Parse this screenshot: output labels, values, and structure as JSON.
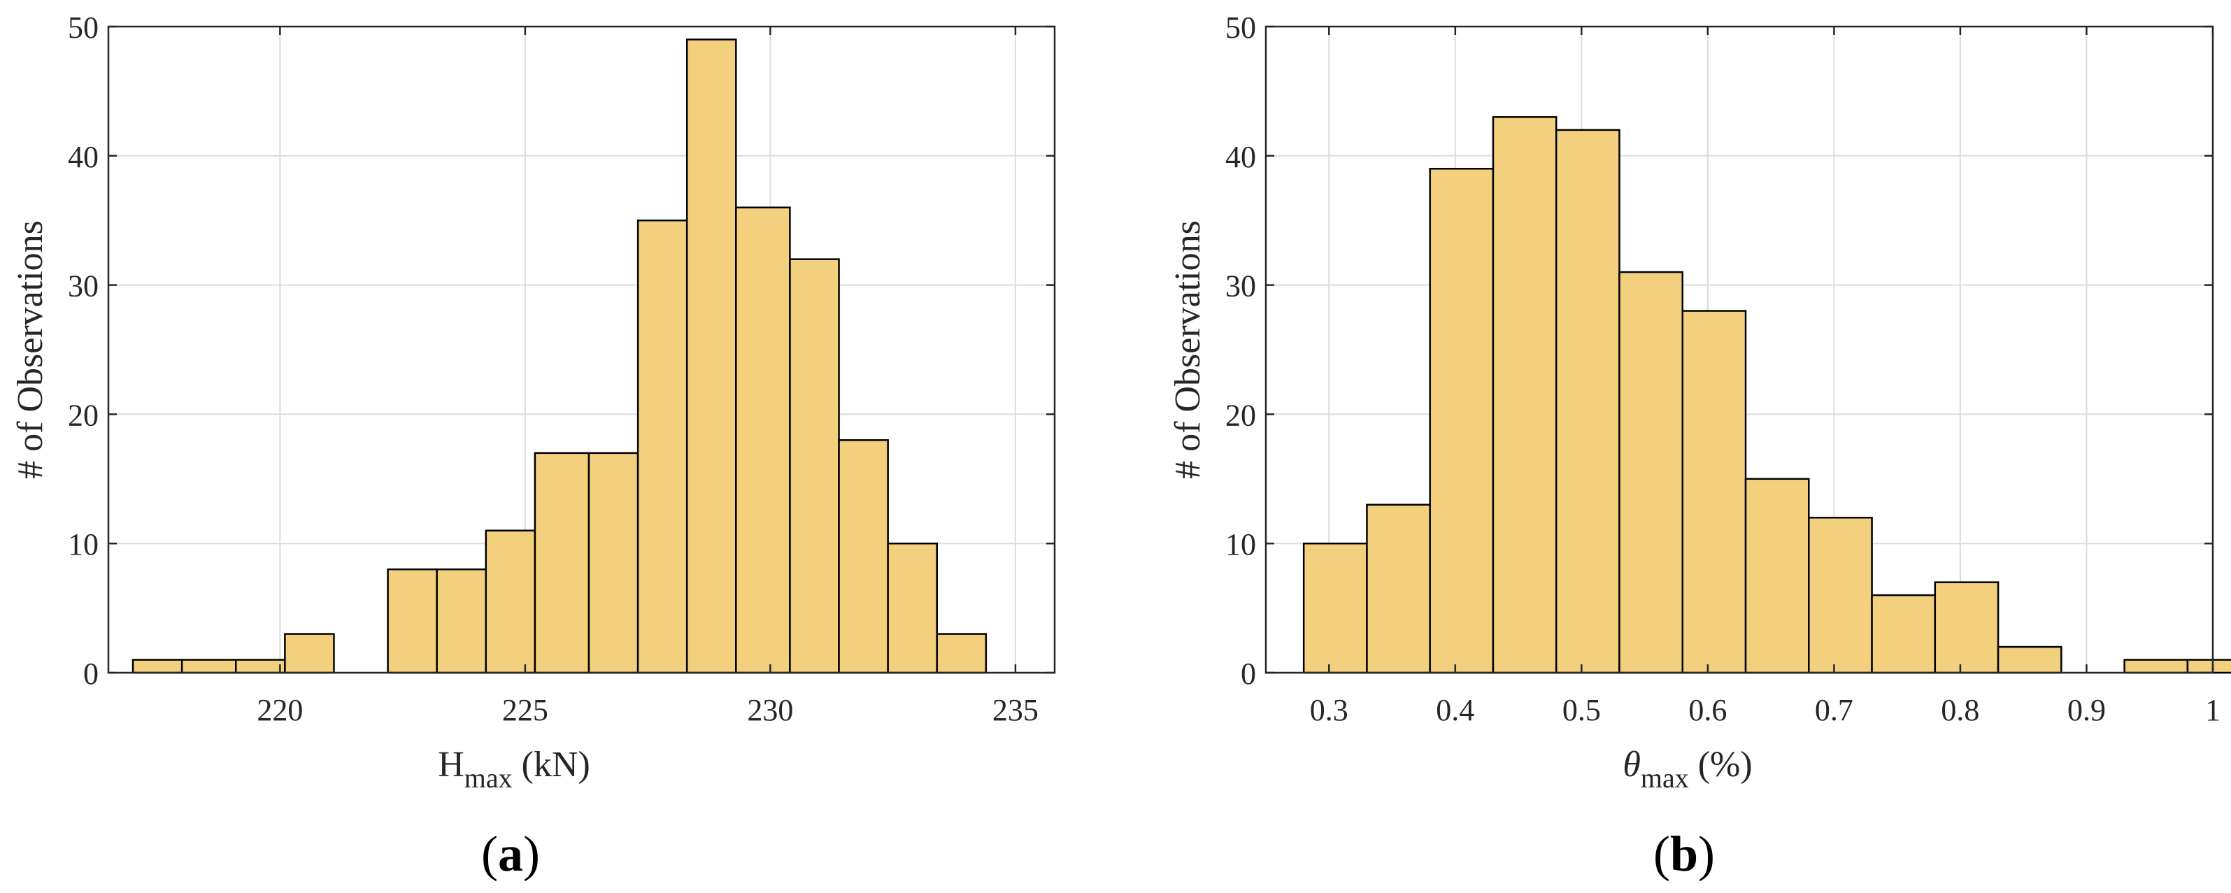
{
  "colors": {
    "bar_fill": "#f2d07e",
    "bar_edge": "#000000",
    "grid": "#dcdcdc",
    "axis": "#262626"
  },
  "chart_data": [
    {
      "type": "bar",
      "panel_label": "a",
      "xlabel_main": "H",
      "xlabel_sub": "max",
      "xlabel_unit": "(kN)",
      "ylabel": "# of Observations",
      "xlim": [
        216.5,
        235.8
      ],
      "ylim": [
        0,
        50
      ],
      "xticks": [
        220,
        225,
        230,
        235
      ],
      "yticks": [
        0,
        10,
        20,
        30,
        40,
        50
      ],
      "grid": true,
      "bins": [
        {
          "x0": 217.0,
          "x1": 218.0,
          "count": 1
        },
        {
          "x0": 218.0,
          "x1": 219.1,
          "count": 1
        },
        {
          "x0": 219.1,
          "x1": 220.1,
          "count": 1
        },
        {
          "x0": 220.1,
          "x1": 221.1,
          "count": 3
        },
        {
          "x0": 222.2,
          "x1": 223.2,
          "count": 8
        },
        {
          "x0": 223.2,
          "x1": 224.2,
          "count": 8
        },
        {
          "x0": 224.2,
          "x1": 225.2,
          "count": 11
        },
        {
          "x0": 225.2,
          "x1": 226.3,
          "count": 17
        },
        {
          "x0": 226.3,
          "x1": 227.3,
          "count": 17
        },
        {
          "x0": 227.3,
          "x1": 228.3,
          "count": 35
        },
        {
          "x0": 228.3,
          "x1": 229.3,
          "count": 49
        },
        {
          "x0": 229.3,
          "x1": 230.4,
          "count": 36
        },
        {
          "x0": 230.4,
          "x1": 231.4,
          "count": 32
        },
        {
          "x0": 231.4,
          "x1": 232.4,
          "count": 18
        },
        {
          "x0": 232.4,
          "x1": 233.4,
          "count": 10
        },
        {
          "x0": 233.4,
          "x1": 234.4,
          "count": 3
        }
      ]
    },
    {
      "type": "bar",
      "panel_label": "b",
      "xlabel_main": "θ",
      "xlabel_sub": "max",
      "xlabel_unit": "(%)",
      "ylabel": "# of Observations",
      "xlim": [
        0.25,
        1.0
      ],
      "ylim": [
        0,
        50
      ],
      "xticks": [
        0.3,
        0.4,
        0.5,
        0.6,
        0.7,
        0.8,
        0.9,
        1
      ],
      "yticks": [
        0,
        10,
        20,
        30,
        40,
        50
      ],
      "grid": true,
      "bins": [
        {
          "x0": 0.28,
          "x1": 0.33,
          "count": 10
        },
        {
          "x0": 0.33,
          "x1": 0.38,
          "count": 13
        },
        {
          "x0": 0.38,
          "x1": 0.43,
          "count": 39
        },
        {
          "x0": 0.43,
          "x1": 0.48,
          "count": 43
        },
        {
          "x0": 0.48,
          "x1": 0.53,
          "count": 42
        },
        {
          "x0": 0.53,
          "x1": 0.58,
          "count": 31
        },
        {
          "x0": 0.58,
          "x1": 0.63,
          "count": 28
        },
        {
          "x0": 0.63,
          "x1": 0.68,
          "count": 15
        },
        {
          "x0": 0.68,
          "x1": 0.73,
          "count": 12
        },
        {
          "x0": 0.73,
          "x1": 0.78,
          "count": 6
        },
        {
          "x0": 0.78,
          "x1": 0.83,
          "count": 7
        },
        {
          "x0": 0.83,
          "x1": 0.88,
          "count": 2
        },
        {
          "x0": 0.93,
          "x1": 0.98,
          "count": 1
        },
        {
          "x0": 0.98,
          "x1": 1.03,
          "count": 1
        }
      ]
    }
  ]
}
